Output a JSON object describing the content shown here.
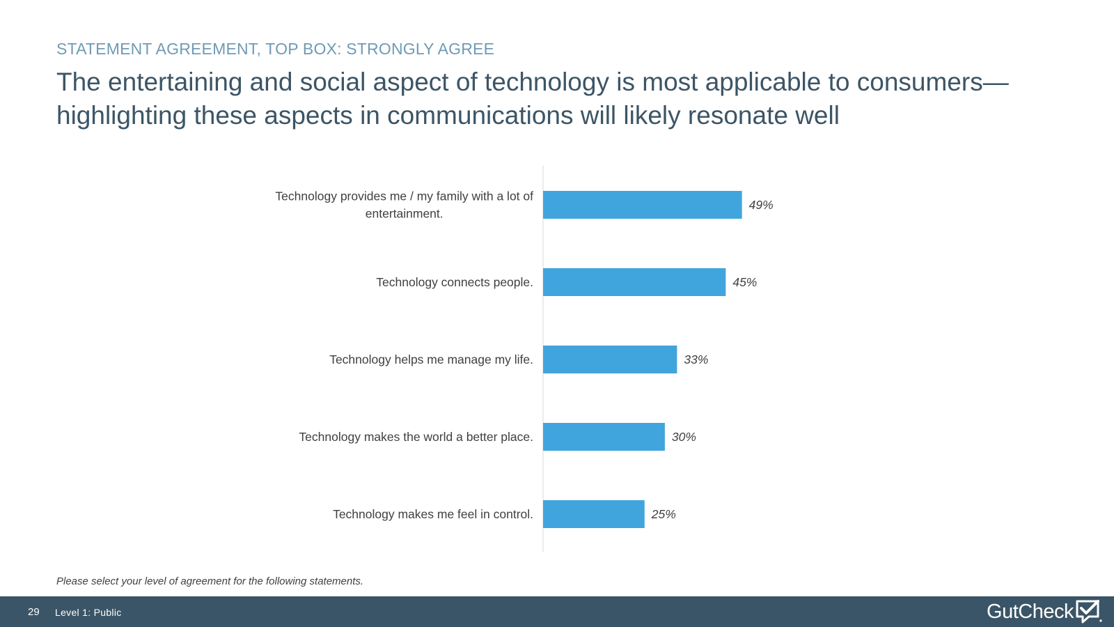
{
  "slide": {
    "kicker": "STATEMENT AGREEMENT, TOP BOX: STRONGLY AGREE",
    "headline": "The entertaining and social aspect of technology is most applicable to consumers—highlighting these aspects in communications will likely resonate well",
    "footnote": "Please select your level of agreement for the following statements.",
    "page_number": "29",
    "classification": "Level 1: Public",
    "logo_text": "GutCheck"
  },
  "colors": {
    "bar": "#41a5dd",
    "kicker": "#6f9bb5",
    "headline": "#3c5566",
    "footer": "#3a5567"
  },
  "chart_data": {
    "type": "bar",
    "orientation": "horizontal",
    "title": "",
    "xlabel": "",
    "ylabel": "",
    "xlim": [
      0,
      100
    ],
    "grid": false,
    "categories": [
      [
        "Technology provides me / my family with a lot of",
        "entertainment."
      ],
      [
        "Technology connects people."
      ],
      [
        "Technology helps me manage my life."
      ],
      [
        "Technology makes the world a better place."
      ],
      [
        "Technology makes me feel in control."
      ]
    ],
    "values": [
      49,
      45,
      33,
      30,
      25
    ],
    "value_labels": [
      "49%",
      "45%",
      "33%",
      "30%",
      "25%"
    ]
  }
}
